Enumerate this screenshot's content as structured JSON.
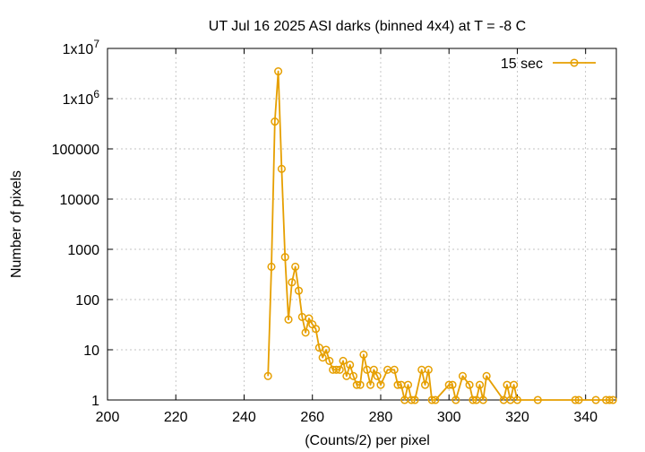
{
  "chart_data": {
    "type": "line",
    "title": "UT Jul 16 2025 ASI darks (binned 4x4) at T = -8 C",
    "xlabel": "(Counts/2) per pixel",
    "ylabel": "Number of pixels",
    "xlim": [
      200,
      349
    ],
    "ylim": [
      1,
      10000000
    ],
    "y_scale": "log",
    "grid": true,
    "legend_position": "top-right",
    "x_ticks": [
      "200",
      "220",
      "240",
      "260",
      "280",
      "300",
      "320",
      "340"
    ],
    "y_ticks": [
      {
        "value": 1,
        "label": "1"
      },
      {
        "value": 10,
        "label": "10"
      },
      {
        "value": 100,
        "label": "100"
      },
      {
        "value": 1000,
        "label": "1000"
      },
      {
        "value": 10000,
        "label": "10000"
      },
      {
        "value": 100000,
        "label": "100000"
      },
      {
        "value": 1000000,
        "label": "1x10",
        "sup": "6"
      },
      {
        "value": 10000000,
        "label": "1x10",
        "sup": "7"
      }
    ],
    "colors": {
      "series": "#e69f00",
      "grid": "#b0b0b0"
    },
    "series": [
      {
        "name": "15 sec",
        "points": [
          [
            247,
            3
          ],
          [
            248,
            450
          ],
          [
            249,
            350000
          ],
          [
            250,
            3500000
          ],
          [
            251,
            40000
          ],
          [
            252,
            700
          ],
          [
            253,
            40
          ],
          [
            254,
            220
          ],
          [
            255,
            450
          ],
          [
            256,
            150
          ],
          [
            257,
            45
          ],
          [
            258,
            22
          ],
          [
            259,
            42
          ],
          [
            260,
            32
          ],
          [
            261,
            26
          ],
          [
            262,
            11
          ],
          [
            263,
            7
          ],
          [
            264,
            10
          ],
          [
            265,
            6
          ],
          [
            266,
            4
          ],
          [
            267,
            4
          ],
          [
            268,
            4
          ],
          [
            269,
            6
          ],
          [
            270,
            3
          ],
          [
            271,
            5
          ],
          [
            272,
            3
          ],
          [
            273,
            2
          ],
          [
            274,
            2
          ],
          [
            275,
            8
          ],
          [
            276,
            4
          ],
          [
            277,
            2
          ],
          [
            278,
            4
          ],
          [
            279,
            3
          ],
          [
            280,
            2
          ],
          [
            282,
            4
          ],
          [
            284,
            4
          ],
          [
            285,
            2
          ],
          [
            286,
            2
          ],
          [
            287,
            1
          ],
          [
            288,
            2
          ],
          [
            289,
            1
          ],
          [
            290,
            1
          ],
          [
            292,
            4
          ],
          [
            293,
            2
          ],
          [
            294,
            4
          ],
          [
            295,
            1
          ],
          [
            296,
            1
          ],
          [
            300,
            2
          ],
          [
            301,
            2
          ],
          [
            302,
            1
          ],
          [
            304,
            3
          ],
          [
            306,
            2
          ],
          [
            307,
            1
          ],
          [
            308,
            1
          ],
          [
            309,
            2
          ],
          [
            310,
            1
          ],
          [
            311,
            3
          ],
          [
            316,
            1
          ],
          [
            317,
            2
          ],
          [
            318,
            1
          ],
          [
            319,
            2
          ],
          [
            320,
            1
          ],
          [
            326,
            1
          ],
          [
            337,
            1
          ],
          [
            338,
            1
          ],
          [
            343,
            1
          ],
          [
            346,
            1
          ],
          [
            347,
            1
          ],
          [
            348,
            1
          ]
        ]
      }
    ]
  }
}
